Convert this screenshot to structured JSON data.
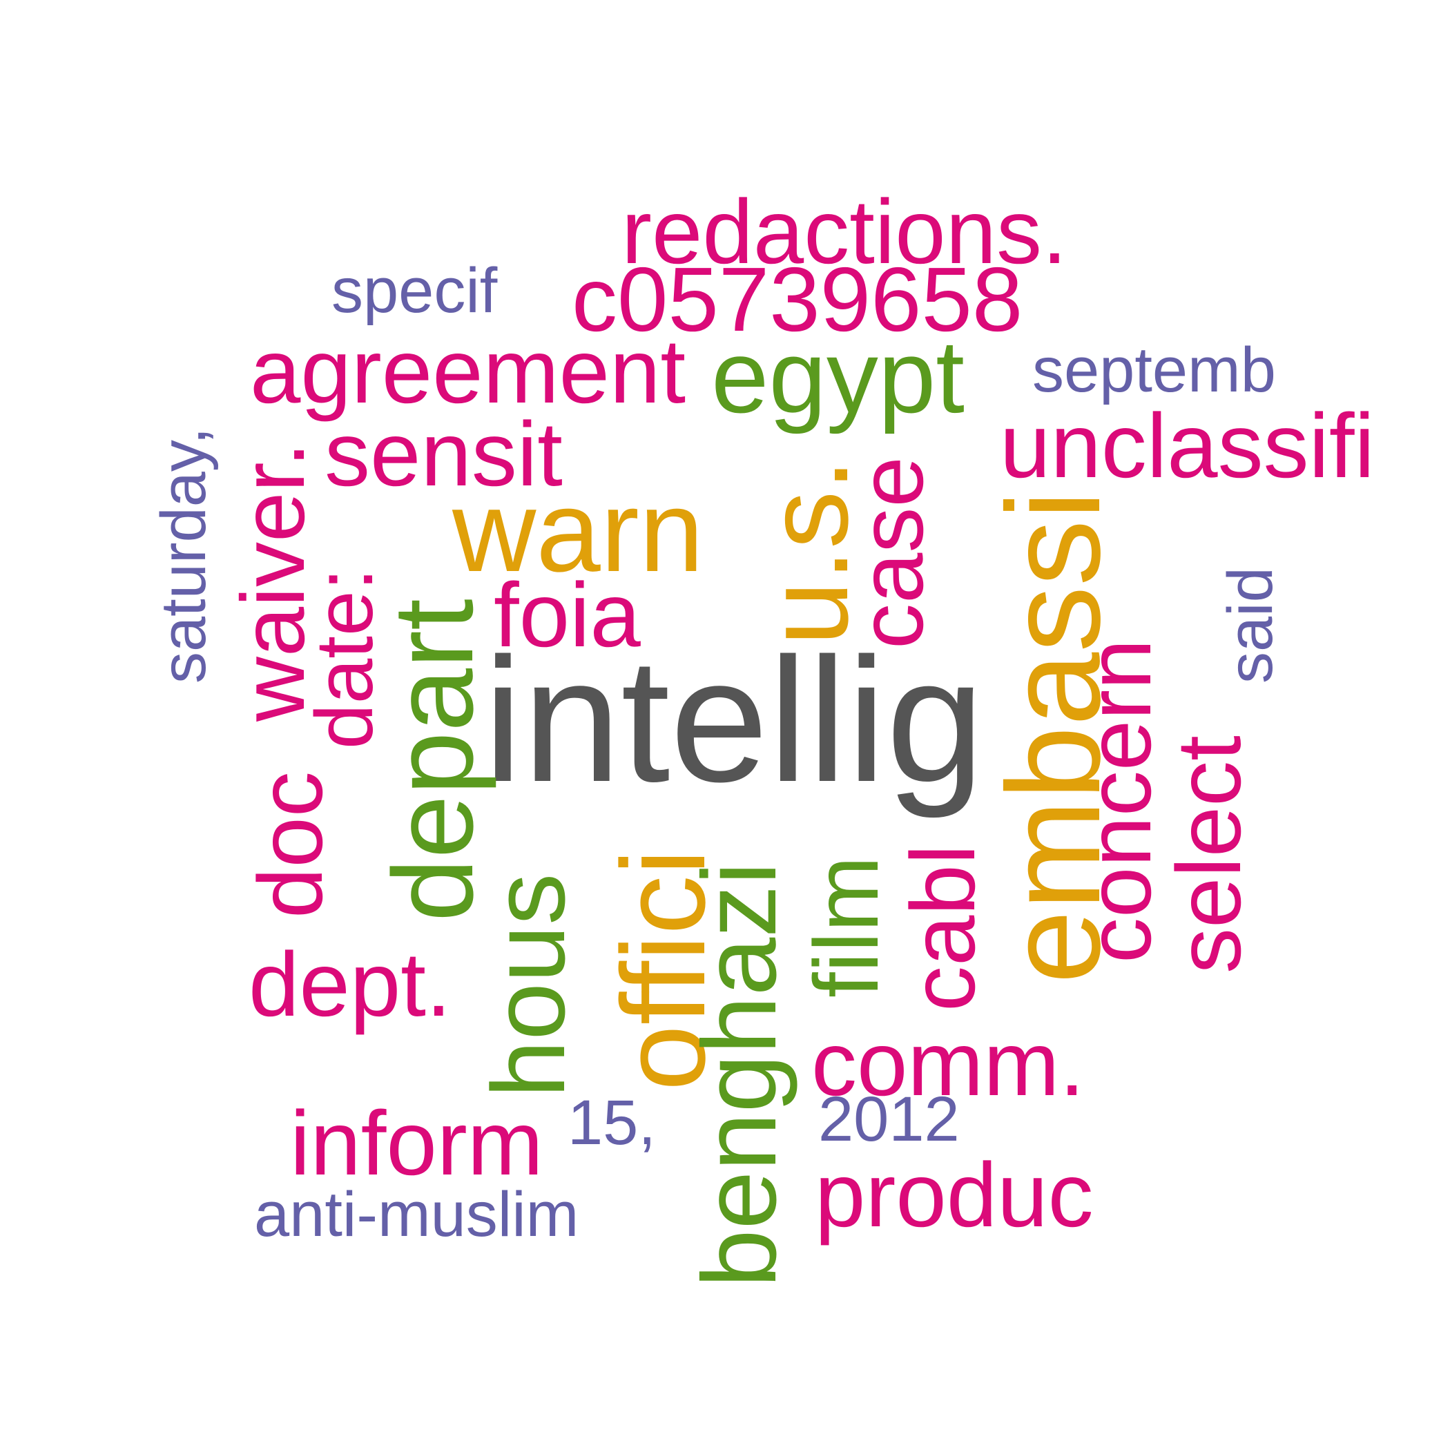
{
  "colors": {
    "dark": "#555555",
    "orange": "#E0A00A",
    "green": "#5A9A1E",
    "pink": "#DB0A79",
    "purple": "#6460A8"
  },
  "words": {
    "intellig": "intellig",
    "warn": "warn",
    "us": "u.s.",
    "embassi": "embassi",
    "offici": "offici",
    "egypt": "egypt",
    "depart": "depart",
    "hous": "hous",
    "benghazi": "benghazi",
    "film": "film",
    "redactions": "redactions.",
    "c05739658": "c05739658",
    "agreement": "agreement",
    "unclassifi": "unclassifi",
    "sensit": "sensit",
    "waiver": "waiver.",
    "date": "date:",
    "foia": "foia",
    "case": "case",
    "concern": "concern",
    "select": "select",
    "cabl": "cabl",
    "doc": "doc",
    "dept": "dept.",
    "comm": "comm.",
    "inform": "inform",
    "produc": "produc",
    "specif": "specif",
    "septemb": "septemb",
    "saturday": "saturday,",
    "said": "said",
    "fifteen": "15,",
    "year": "2012",
    "antimuslim": "anti-muslim"
  }
}
